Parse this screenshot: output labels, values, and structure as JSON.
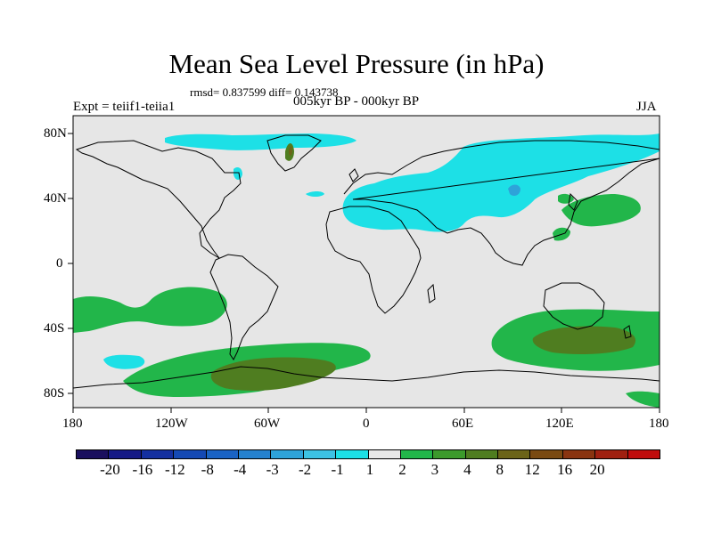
{
  "title": "Mean Sea Level Pressure (in hPa)",
  "stats": "rmsd= 0.837599 diff= 0.143738",
  "experiment": "Expt = teiif1-teiia1",
  "period": "005kyr BP - 000kyr BP",
  "season": "JJA",
  "lat_labels": [
    "80N",
    "40N",
    "0",
    "40S",
    "80S"
  ],
  "lon_labels": [
    "180",
    "120W",
    "60W",
    "0",
    "60E",
    "120E",
    "180"
  ],
  "colorbar": {
    "labels": [
      "-20",
      "-16",
      "-12",
      "-8",
      "-4",
      "-3",
      "-2",
      "-1",
      "1",
      "2",
      "3",
      "4",
      "8",
      "12",
      "16",
      "20"
    ],
    "colors": [
      "#1a0f5e",
      "#151a86",
      "#1430a0",
      "#1449b4",
      "#1a63c4",
      "#2481cf",
      "#2ea3d9",
      "#3dc2e3",
      "#1de0e6",
      "#e8e8e8",
      "#22b64a",
      "#3c9a2c",
      "#4f7d20",
      "#6b6418",
      "#7a4a12",
      "#8a3410",
      "#a02010",
      "#c00c0c"
    ]
  },
  "map_colors": {
    "background": "#e6e6e6",
    "cyan": "#1de0e6",
    "blue": "#2ea3d9",
    "green": "#22b64a",
    "dark_green": "#4f7d20",
    "olive": "#6b6418"
  }
}
